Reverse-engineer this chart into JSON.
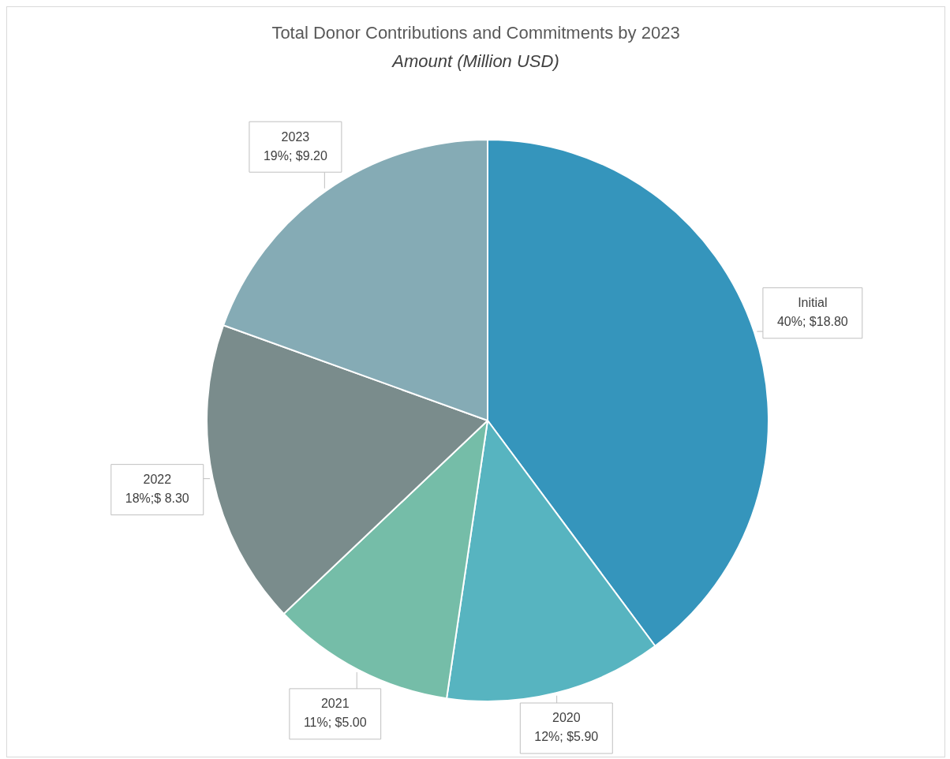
{
  "chart_data": {
    "type": "pie",
    "title": "Total Donor Contributions and Commitments by 2023",
    "subtitle": "Amount (Million USD)",
    "categories": [
      "Initial",
      "2020",
      "2021",
      "2022",
      "2023"
    ],
    "values": [
      18.8,
      5.9,
      5.0,
      8.3,
      9.2
    ],
    "value_labels": [
      "40%; $18.80",
      "12%; $5.90",
      "11%; $5.00",
      "18%;$ 8.30",
      "19%; $9.20"
    ],
    "colors": [
      "#3595bc",
      "#57b4c0",
      "#75bda8",
      "#7a8c8c",
      "#85abb5"
    ],
    "legend": false
  }
}
